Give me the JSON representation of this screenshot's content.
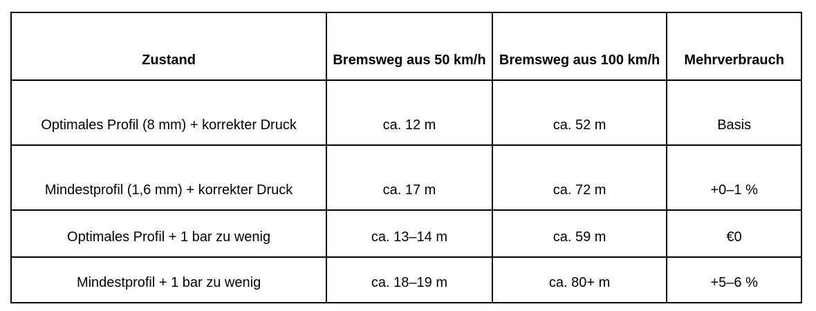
{
  "table": {
    "headers": [
      "Zustand",
      "Bremsweg aus 50 km/h",
      "Bremsweg aus 100 km/h",
      "Mehrverbrauch"
    ],
    "rows": [
      [
        "Optimales Profil (8 mm) + korrekter Druck",
        "ca. 12 m",
        "ca. 52 m",
        "Basis"
      ],
      [
        "Mindestprofil (1,6 mm) + korrekter Druck",
        "ca. 17 m",
        "ca. 72 m",
        "+0–1 %"
      ],
      [
        "Optimales Profil + 1 bar zu wenig",
        "ca. 13–14 m",
        "ca. 59 m",
        "€0"
      ],
      [
        "Mindestprofil + 1 bar zu wenig",
        "ca. 18–19 m",
        "ca. 80+ m",
        "+5–6 %"
      ]
    ]
  }
}
